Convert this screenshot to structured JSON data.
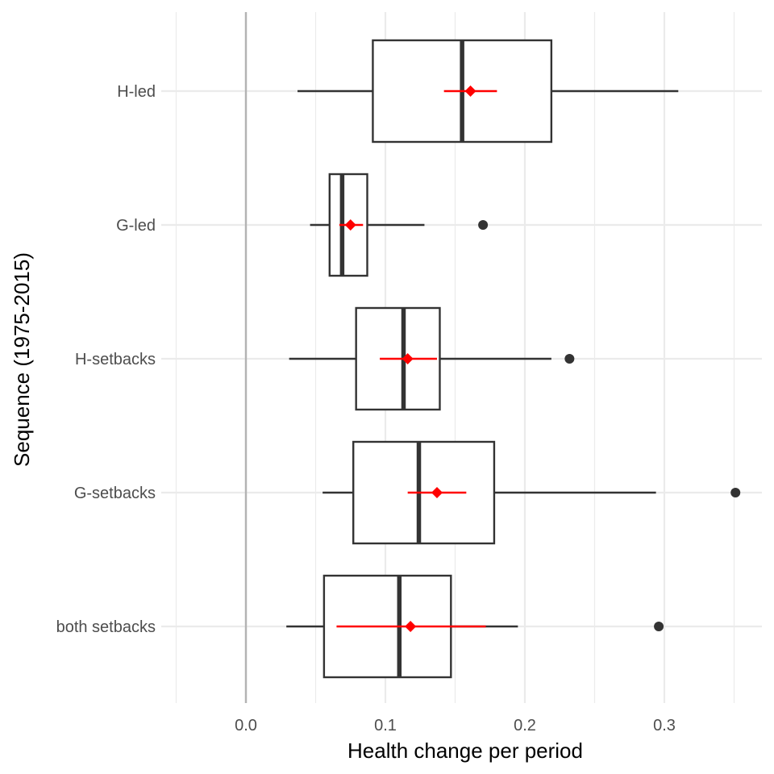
{
  "chart_data": {
    "type": "boxplot",
    "orientation": "horizontal",
    "xlabel": "Health change per period",
    "ylabel": "Sequence (1975-2015)",
    "xlim": [
      -0.05,
      0.37
    ],
    "x_ticks": [
      0.0,
      0.1,
      0.2,
      0.3
    ],
    "x_tick_labels": [
      "0.0",
      "0.1",
      "0.2",
      "0.3"
    ],
    "x_minor_ticks": [
      -0.05,
      0.05,
      0.15,
      0.25,
      0.35
    ],
    "reference_line_x": 0.0,
    "grid": true,
    "colors": {
      "box": "#333333",
      "mean": "#ff0000",
      "grid": "#ebebeb",
      "reference": "#b3b3b3"
    },
    "categories": [
      "H-led",
      "G-led",
      "H-setbacks",
      "G-setbacks",
      "both setbacks"
    ],
    "boxes": [
      {
        "category": "H-led",
        "whisker_low": 0.037,
        "q1": 0.091,
        "median": 0.155,
        "q3": 0.219,
        "whisker_high": 0.31,
        "outliers": [],
        "mean": 0.161,
        "ci_low": 0.142,
        "ci_high": 0.18
      },
      {
        "category": "G-led",
        "whisker_low": 0.046,
        "q1": 0.06,
        "median": 0.069,
        "q3": 0.087,
        "whisker_high": 0.128,
        "outliers": [
          0.17
        ],
        "mean": 0.075,
        "ci_low": 0.067,
        "ci_high": 0.084
      },
      {
        "category": "H-setbacks",
        "whisker_low": 0.031,
        "q1": 0.079,
        "median": 0.113,
        "q3": 0.139,
        "whisker_high": 0.219,
        "outliers": [
          0.232
        ],
        "mean": 0.116,
        "ci_low": 0.096,
        "ci_high": 0.137
      },
      {
        "category": "G-setbacks",
        "whisker_low": 0.055,
        "q1": 0.077,
        "median": 0.124,
        "q3": 0.178,
        "whisker_high": 0.294,
        "outliers": [
          0.351
        ],
        "mean": 0.137,
        "ci_low": 0.116,
        "ci_high": 0.158
      },
      {
        "category": "both setbacks",
        "whisker_low": 0.029,
        "q1": 0.056,
        "median": 0.11,
        "q3": 0.147,
        "whisker_high": 0.195,
        "outliers": [
          0.296
        ],
        "mean": 0.118,
        "ci_low": 0.065,
        "ci_high": 0.172
      }
    ]
  }
}
